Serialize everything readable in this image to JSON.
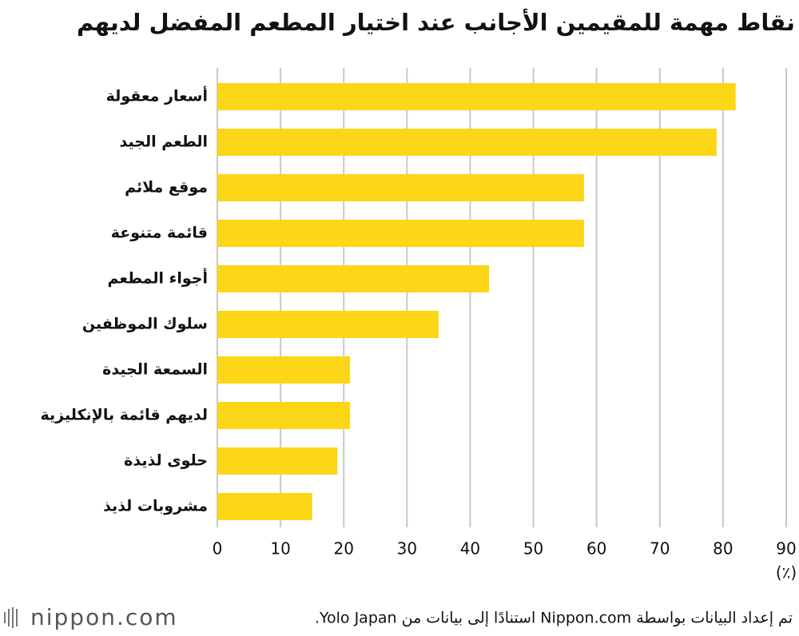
{
  "chart_data": {
    "type": "bar",
    "orientation": "horizontal",
    "title": "نقاط مهمة للمقيمين الأجانب عند اختيار المطعم المفضل لديهم",
    "categories": [
      "أسعار معقولة",
      "الطعم الجيد",
      "موقع ملائم",
      "قائمة متنوعة",
      "أجواء المطعم",
      "سلوك الموظفين",
      "السمعة الجيدة",
      "لديهم قائمة بالإنكليزية",
      "حلوى لذيذة",
      "مشروبات لذيذ"
    ],
    "values": [
      82,
      79,
      58,
      58,
      43,
      35,
      21,
      21,
      19,
      15
    ],
    "color": "#fcd617",
    "xlim": [
      0,
      90
    ],
    "xticks": [
      0,
      10,
      20,
      30,
      40,
      50,
      60,
      70,
      80,
      90
    ],
    "x_label": "(٪)",
    "grid": true,
    "source": "تم إعداد البيانات بواسطة Nippon.com استنادًا إلى بيانات من Yolo Japan.",
    "logo": "nippon.com"
  }
}
